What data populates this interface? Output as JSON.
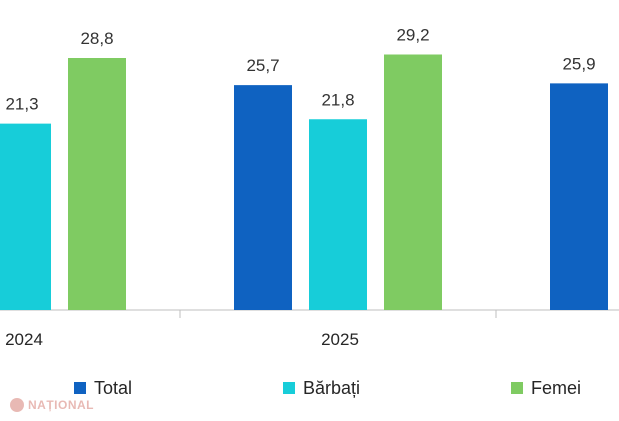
{
  "chart_data": {
    "type": "bar",
    "categories": [
      "2024",
      "2025",
      ""
    ],
    "series": [
      {
        "name": "Total",
        "color": "#0f62c1",
        "values": [
          null,
          25.7,
          25.9
        ],
        "labels": [
          "",
          "25,7",
          "25,9"
        ]
      },
      {
        "name": "Bărbați",
        "color": "#17cdd9",
        "values": [
          21.3,
          21.8,
          null
        ],
        "labels": [
          "21,3",
          "21,8",
          ""
        ]
      },
      {
        "name": "Femei",
        "color": "#7fcb62",
        "values": [
          28.8,
          29.2,
          null
        ],
        "labels": [
          "28,8",
          "29,2",
          ""
        ]
      }
    ],
    "ylim": [
      0,
      32
    ],
    "grid": false,
    "legend_position": "bottom"
  },
  "legend": [
    {
      "label": "Total",
      "color": "#0f62c1"
    },
    {
      "label": "Bărbați",
      "color": "#17cdd9"
    },
    {
      "label": "Femei",
      "color": "#7fcb62"
    }
  ],
  "watermark": {
    "text": "NAȚIONAL"
  }
}
